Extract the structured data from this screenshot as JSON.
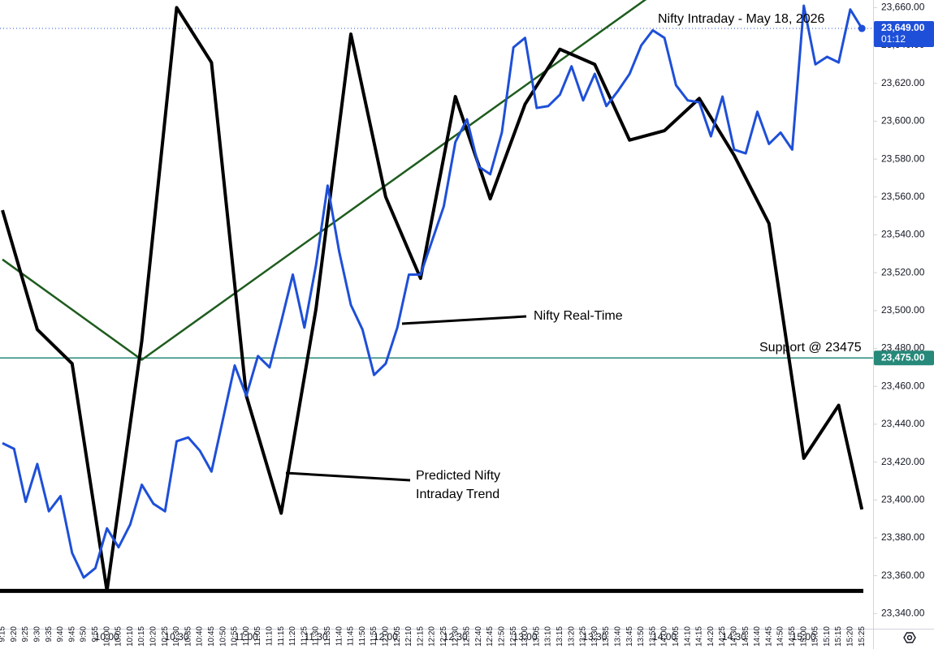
{
  "chart_data": {
    "type": "line",
    "title": "Nifty Intraday - May 18, 2026",
    "categories": [
      "9:15",
      "9:20",
      "9:25",
      "9:30",
      "9:35",
      "9:40",
      "9:45",
      "9:50",
      "9:55",
      "10:00",
      "10:05",
      "10:10",
      "10:15",
      "10:20",
      "10:25",
      "10:30",
      "10:35",
      "10:40",
      "10:45",
      "10:50",
      "10:55",
      "11:00",
      "11:05",
      "11:10",
      "11:15",
      "11:20",
      "11:25",
      "11:30",
      "11:35",
      "11:40",
      "11:45",
      "11:50",
      "11:55",
      "12:00",
      "12:05",
      "12:10",
      "12:15",
      "12:20",
      "12:25",
      "12:30",
      "12:35",
      "12:40",
      "12:45",
      "12:50",
      "12:55",
      "13:00",
      "13:05",
      "13:10",
      "13:15",
      "13:20",
      "13:25",
      "13:30",
      "13:35",
      "13:40",
      "13:45",
      "13:50",
      "13:55",
      "14:00",
      "14:05",
      "14:10",
      "14:15",
      "14:20",
      "14:25",
      "14:30",
      "14:35",
      "14:40",
      "14:45",
      "14:50",
      "14:55",
      "15:00",
      "15:05",
      "15:10",
      "15:15",
      "15:20",
      "15:25"
    ],
    "xticks": [
      "10:00",
      "10:30",
      "11:00",
      "11:30",
      "12:00",
      "12:30",
      "13:00",
      "13:30",
      "14:00",
      "14:30",
      "15:00"
    ],
    "series": [
      {
        "name": "Nifty Real-Time",
        "color": "#1e4fd8",
        "values": [
          23430,
          23427,
          23399,
          23419,
          23394,
          23402,
          23372,
          23359,
          23364,
          23385,
          23375,
          23387,
          23408,
          23398,
          23394,
          23431,
          23433,
          23426,
          23415,
          23443,
          23471,
          23455,
          23476,
          23470,
          23494,
          23519,
          23491,
          23524,
          23566,
          23531,
          23503,
          23490,
          23466,
          23472,
          23491,
          23519,
          23519,
          23537,
          23555,
          23589,
          23601,
          23576,
          23572,
          23594,
          23639,
          23644,
          23607,
          23608,
          23614,
          23629,
          23611,
          23625,
          23608,
          23616,
          23625,
          23640,
          23648,
          23644,
          23619,
          23611,
          23610,
          23592,
          23613,
          23585,
          23583,
          23605,
          23588,
          23594,
          23585,
          23661,
          23630,
          23634,
          23631,
          23659,
          23649
        ]
      },
      {
        "name": "Predicted Nifty Intraday Trend",
        "color": "#000000",
        "x": [
          "9:15",
          "9:30",
          "9:45",
          "10:00",
          "10:15",
          "10:30",
          "10:45",
          "11:00",
          "11:15",
          "11:30",
          "11:45",
          "12:00",
          "12:15",
          "12:30",
          "12:45",
          "13:00",
          "13:15",
          "13:30",
          "13:45",
          "14:00",
          "14:15",
          "14:30",
          "14:45",
          "15:00",
          "15:15",
          "15:25"
        ],
        "values": [
          23553,
          23490,
          23472,
          23352,
          23484,
          23660,
          23631,
          23455,
          23393,
          23501,
          23646,
          23560,
          23517,
          23613,
          23559,
          23609,
          23638,
          23630,
          23590,
          23595,
          23612,
          23582,
          23546,
          23422,
          23450,
          23395
        ]
      }
    ],
    "trendline": {
      "color": "#1e5c1e",
      "x": [
        "9:15",
        "10:15",
        "13:55"
      ],
      "values": [
        23527,
        23474,
        23667
      ]
    },
    "base_line": {
      "color": "#000000",
      "value": 23352
    },
    "support": {
      "value": 23475,
      "label": "23,475.00",
      "text": "Support @ 23475",
      "color": "#26897a"
    },
    "last_price": {
      "value": 23649,
      "label": "23,649.00",
      "countdown": "01:12",
      "color": "#1e4fd8"
    },
    "ylim": [
      23332,
      23664
    ],
    "yticks": [
      {
        "value": 23340,
        "label": "23,340.00"
      },
      {
        "value": 23360,
        "label": "23,360.00"
      },
      {
        "value": 23380,
        "label": "23,380.00"
      },
      {
        "value": 23400,
        "label": "23,400.00"
      },
      {
        "value": 23420,
        "label": "23,420.00"
      },
      {
        "value": 23440,
        "label": "23,440.00"
      },
      {
        "value": 23460,
        "label": "23,460.00"
      },
      {
        "value": 23480,
        "label": "23,480.00"
      },
      {
        "value": 23500,
        "label": "23,500.00"
      },
      {
        "value": 23520,
        "label": "23,520.00"
      },
      {
        "value": 23540,
        "label": "23,540.00"
      },
      {
        "value": 23560,
        "label": "23,560.00"
      },
      {
        "value": 23580,
        "label": "23,580.00"
      },
      {
        "value": 23600,
        "label": "23,600.00"
      },
      {
        "value": 23620,
        "label": "23,620.00"
      },
      {
        "value": 23640,
        "label": "23,640.00"
      },
      {
        "value": 23660,
        "label": "23,660.00"
      }
    ]
  }
}
